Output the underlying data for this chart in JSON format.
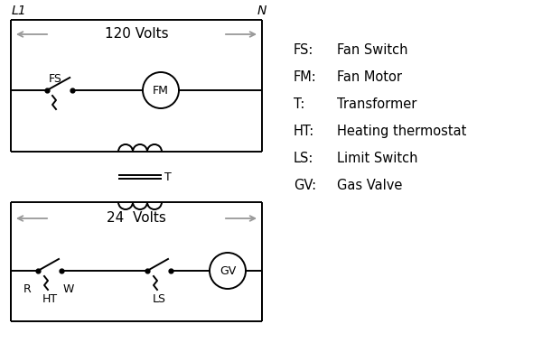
{
  "bg_color": "#ffffff",
  "line_color": "#000000",
  "arrow_color": "#999999",
  "legend_items": [
    [
      "FS:",
      "Fan Switch"
    ],
    [
      "FM:",
      "Fan Motor"
    ],
    [
      "T:",
      "Transformer"
    ],
    [
      "HT:",
      "Heating thermostat"
    ],
    [
      "LS:",
      "Limit Switch"
    ],
    [
      "GV:",
      "Gas Valve"
    ]
  ],
  "label_L1": "L1",
  "label_N": "N",
  "label_120V": "120 Volts",
  "label_24V": "24  Volts",
  "label_T": "T",
  "label_R": "R",
  "label_W": "W",
  "label_FS": "FS",
  "label_FM": "FM",
  "label_HT": "HT",
  "label_LS": "LS",
  "label_GV": "GV",
  "lw": 1.4,
  "legend_fontsize": 10.5,
  "label_fontsize": 9,
  "volt_fontsize": 11
}
